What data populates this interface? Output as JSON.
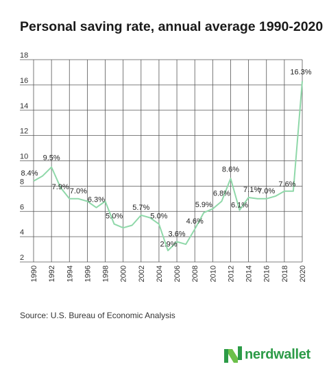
{
  "chart_data": {
    "type": "line",
    "title": "Personal saving rate, annual average 1990-2020",
    "xlabel": "",
    "ylabel": "",
    "x": [
      1990,
      1991,
      1992,
      1993,
      1994,
      1995,
      1996,
      1997,
      1998,
      1999,
      2000,
      2001,
      2002,
      2003,
      2004,
      2005,
      2006,
      2007,
      2008,
      2009,
      2010,
      2011,
      2012,
      2013,
      2014,
      2015,
      2016,
      2017,
      2018,
      2019,
      2020
    ],
    "values": [
      8.4,
      8.8,
      9.5,
      7.9,
      7.0,
      7.0,
      6.8,
      6.3,
      6.8,
      5.0,
      4.7,
      4.9,
      5.7,
      5.5,
      5.0,
      2.9,
      3.6,
      3.4,
      4.6,
      5.9,
      6.2,
      6.8,
      8.6,
      6.1,
      7.1,
      7.0,
      7.0,
      7.2,
      7.6,
      7.6,
      16.3
    ],
    "data_labels": [
      {
        "year": 1990,
        "text": "8.4%"
      },
      {
        "year": 1992,
        "text": "9.5%"
      },
      {
        "year": 1993,
        "text": "7.9%"
      },
      {
        "year": 1995,
        "text": "7.0%"
      },
      {
        "year": 1997,
        "text": "6.3%"
      },
      {
        "year": 1999,
        "text": "5.0%"
      },
      {
        "year": 2002,
        "text": "5.7%"
      },
      {
        "year": 2004,
        "text": "5.0%"
      },
      {
        "year": 2005,
        "text": "2.9%"
      },
      {
        "year": 2006,
        "text": "3.6%"
      },
      {
        "year": 2008,
        "text": "4.6%"
      },
      {
        "year": 2009,
        "text": "5.9%"
      },
      {
        "year": 2011,
        "text": "6.8%"
      },
      {
        "year": 2012,
        "text": "8.6%"
      },
      {
        "year": 2013,
        "text": "6.1%"
      },
      {
        "year": 2014,
        "text": "7.1%"
      },
      {
        "year": 2016,
        "text": "7.0%"
      },
      {
        "year": 2019,
        "text": "7.6%"
      },
      {
        "year": 2020,
        "text": "16.3%"
      }
    ],
    "x_ticks": [
      1990,
      1992,
      1994,
      1996,
      1998,
      2000,
      2002,
      2004,
      2006,
      2008,
      2010,
      2012,
      2014,
      2016,
      2018,
      2020
    ],
    "y_ticks": [
      2,
      4,
      6,
      8,
      10,
      12,
      14,
      16,
      18
    ],
    "xlim": [
      1990,
      2020
    ],
    "ylim": [
      2,
      18
    ],
    "grid": true,
    "legend": "none",
    "line_color": "#8fd8a9",
    "grid_color": "#555555"
  },
  "source": "Source: U.S. Bureau of Economic Analysis",
  "logo": {
    "text": "nerdwallet",
    "color": "#2c9b47",
    "icon": "nerdwallet-n-icon"
  }
}
